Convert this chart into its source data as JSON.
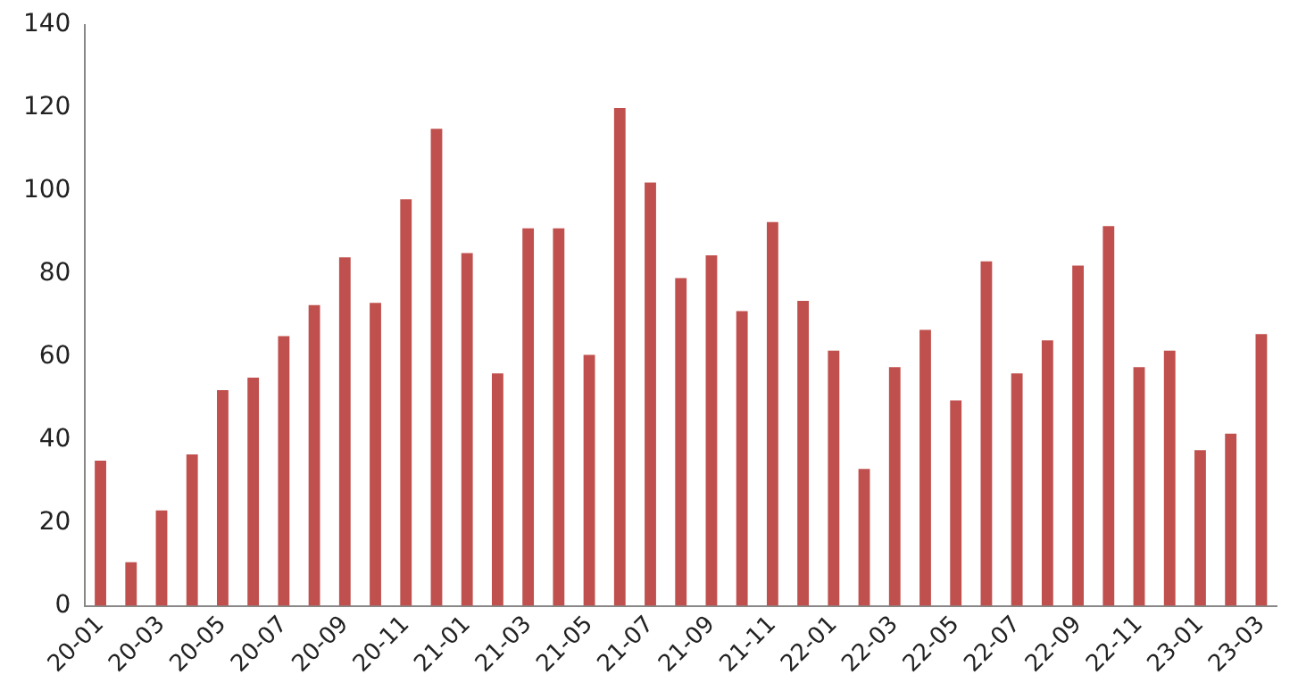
{
  "chart_data": {
    "type": "bar",
    "categories": [
      "20-01",
      null,
      "20-03",
      null,
      "20-05",
      null,
      "20-07",
      null,
      "20-09",
      null,
      "20-11",
      null,
      "21-01",
      null,
      "21-03",
      null,
      "21-05",
      null,
      "21-07",
      null,
      "21-09",
      null,
      "21-11",
      null,
      "22-01",
      null,
      "22-03",
      null,
      "22-05",
      null,
      "22-07",
      null,
      "22-09",
      null,
      "22-11",
      null,
      "23-01",
      null,
      "23-03"
    ],
    "values": [
      35,
      10.5,
      23,
      36.5,
      52,
      55,
      65,
      72.5,
      84,
      73,
      98,
      115,
      85,
      56,
      91,
      91,
      60.5,
      120,
      102,
      79,
      84.5,
      71,
      92.5,
      73.5,
      61.5,
      33,
      57.5,
      66.5,
      49.5,
      83,
      56,
      64,
      82,
      91.5,
      57.5,
      61.5,
      37.5,
      41.5,
      65.5
    ],
    "color": "#c0504d",
    "ylim": [
      0,
      140
    ],
    "yticks": [
      0,
      20,
      40,
      60,
      80,
      100,
      120,
      140
    ],
    "grid": false
  }
}
